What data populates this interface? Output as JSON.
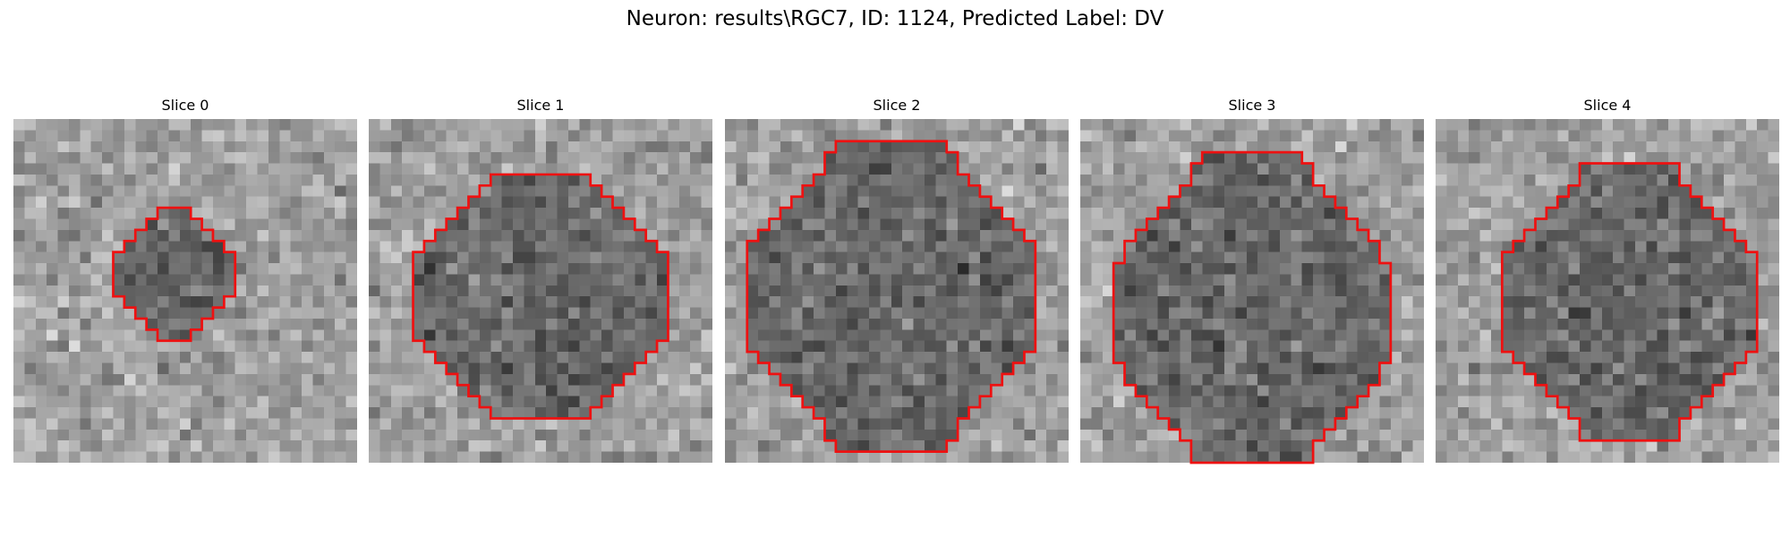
{
  "title": "Neuron: results\\RGC7, ID: 1124, Predicted Label: DV",
  "contour_color": "#ee1111",
  "panels": [
    {
      "label": "Slice 0",
      "roi_cx": 14.5,
      "roi_cy": 14,
      "roi_rx": 5,
      "roi_ry": 5.5
    },
    {
      "label": "Slice 1",
      "roi_cx": 15.5,
      "roi_cy": 16,
      "roi_rx": 11,
      "roi_ry": 11
    },
    {
      "label": "Slice 2",
      "roi_cx": 15,
      "roi_cy": 16,
      "roi_rx": 13,
      "roi_ry": 13.5
    },
    {
      "label": "Slice 3",
      "roi_cx": 15.5,
      "roi_cy": 17.5,
      "roi_rx": 12,
      "roi_ry": 14
    },
    {
      "label": "Slice 4",
      "roi_cx": 17.5,
      "roi_cy": 16.5,
      "roi_rx": 11.5,
      "roi_ry": 12
    }
  ]
}
